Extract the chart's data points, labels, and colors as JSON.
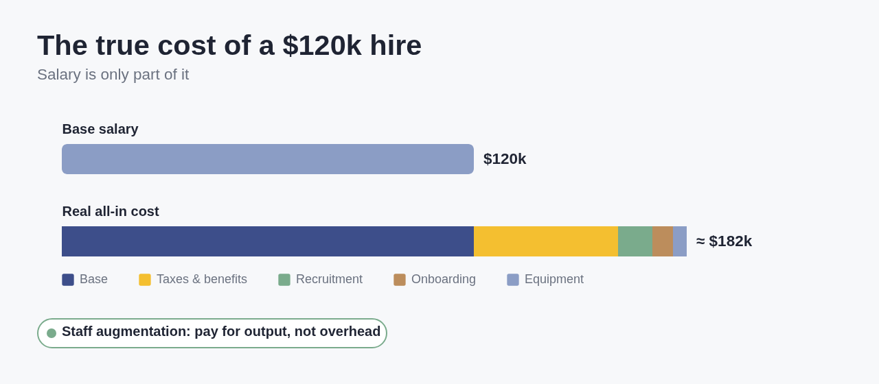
{
  "chart_data": {
    "type": "bar",
    "orientation": "horizontal",
    "stacked": true,
    "title": "The true cost of a $120k hire",
    "subtitle": "Salary is only part of it",
    "categories": [
      "Base salary",
      "Real all-in cost"
    ],
    "series": [
      {
        "color": "#8b9dc5",
        "values": [
          120,
          null
        ],
        "value_labels": [
          "$120k",
          null
        ]
      },
      {
        "name": "Base",
        "color": "#3d4e8a",
        "values": [
          null,
          120
        ]
      },
      {
        "name": "Taxes & benefits",
        "color": "#f4bf30",
        "values": [
          null,
          42
        ]
      },
      {
        "name": "Recruitment",
        "color": "#7aab8c",
        "values": [
          null,
          10
        ]
      },
      {
        "name": "Onboarding",
        "color": "#bc8d5c",
        "values": [
          null,
          6
        ]
      },
      {
        "name": "Equipment",
        "color": "#8b9dc5",
        "values": [
          null,
          4
        ]
      }
    ],
    "totals": [
      null,
      "≈ $182k"
    ],
    "tick_labels": "y",
    "legend": "bottom left",
    "annotations": [
      "Staff augmentation: pay for output, not overhead"
    ]
  }
}
